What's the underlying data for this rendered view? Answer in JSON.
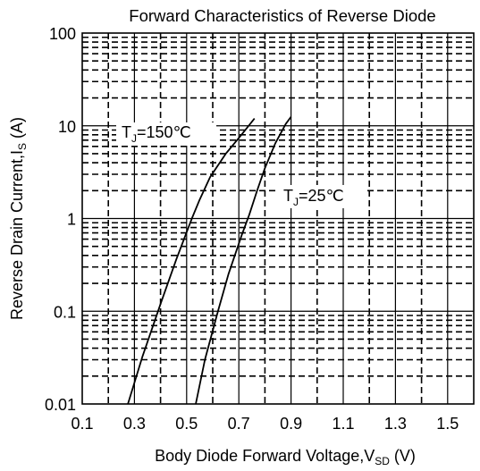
{
  "chart_data": {
    "type": "line",
    "title": "Forward Characteristics of Reverse Diode",
    "xlabel": "Body Diode Forward Voltage,V",
    "xlabel_sub": "SD",
    "xlabel_unit": " (V)",
    "ylabel": "Reverse Drain Current,I",
    "ylabel_sub": "S",
    "ylabel_unit": " (A)",
    "x_scale": "linear",
    "y_scale": "log",
    "xlim": [
      0.1,
      1.6
    ],
    "ylim": [
      0.01,
      100
    ],
    "x_ticks": [
      0.1,
      0.3,
      0.5,
      0.7,
      0.9,
      1.1,
      1.3,
      1.5
    ],
    "x_tick_labels": [
      "0.1",
      "0.3",
      "0.5",
      "0.7",
      "0.9",
      "1.1",
      "1.3",
      "1.5"
    ],
    "y_ticks": [
      0.01,
      0.1,
      1,
      10,
      100
    ],
    "y_tick_labels": [
      "0.01",
      "0.1",
      "1",
      "10",
      "100"
    ],
    "grid": true,
    "series": [
      {
        "name": "T_J=150℃",
        "label_main": "T",
        "label_sub": "J",
        "label_rest": "=150℃",
        "points": [
          [
            0.275,
            0.01
          ],
          [
            0.33,
            0.032
          ],
          [
            0.4,
            0.12
          ],
          [
            0.46,
            0.36
          ],
          [
            0.52,
            1.0
          ],
          [
            0.55,
            1.6
          ],
          [
            0.59,
            2.8
          ],
          [
            0.65,
            5.0
          ],
          [
            0.71,
            8.0
          ],
          [
            0.76,
            12.0
          ]
        ]
      },
      {
        "name": "T_J=25℃",
        "label_main": "T",
        "label_sub": "J",
        "label_rest": "=25℃",
        "points": [
          [
            0.535,
            0.01
          ],
          [
            0.57,
            0.03
          ],
          [
            0.62,
            0.1
          ],
          [
            0.66,
            0.25
          ],
          [
            0.71,
            0.65
          ],
          [
            0.74,
            1.1
          ],
          [
            0.77,
            2.0
          ],
          [
            0.8,
            3.5
          ],
          [
            0.84,
            6.5
          ],
          [
            0.88,
            10.5
          ],
          [
            0.9,
            12.5
          ]
        ]
      }
    ]
  }
}
